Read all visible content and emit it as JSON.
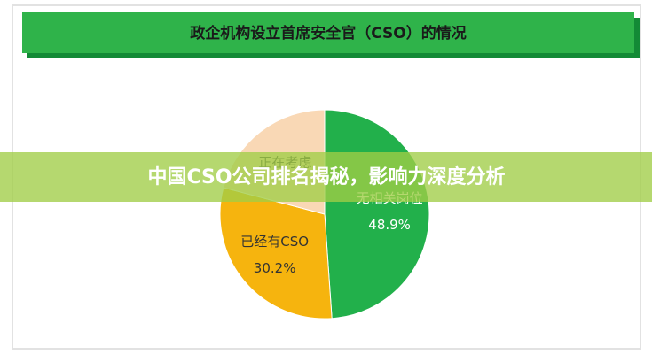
{
  "chart_data": {
    "type": "pie",
    "title": "政企机构设立首席安全官（CSO）的情况",
    "overlay_text": "中国CSO公司排名揭秘，影响力深度分析",
    "categories": [
      "无相关岗位",
      "已经有CSO",
      "正在考虑"
    ],
    "values": [
      48.9,
      30.2,
      20.9
    ],
    "value_labels": [
      "48.9%",
      "30.2%",
      null
    ],
    "colors": [
      "#22b04b",
      "#f6b40e",
      "#f9d8b5"
    ]
  }
}
